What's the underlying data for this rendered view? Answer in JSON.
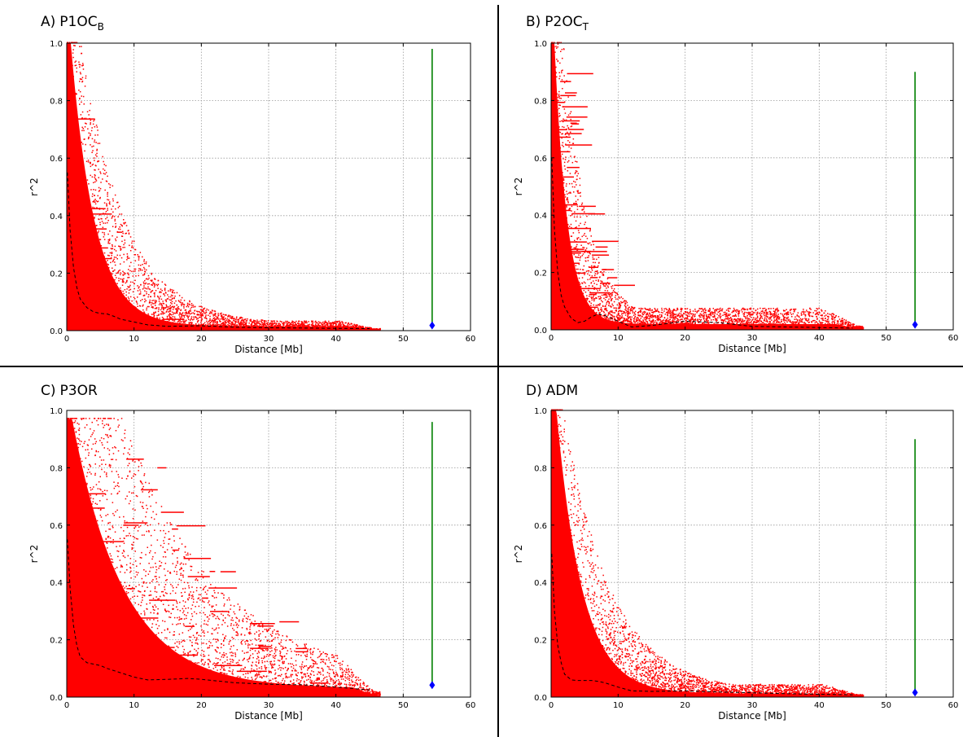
{
  "chart_data": [
    {
      "id": "A",
      "type": "scatter",
      "title": {
        "prefix": "A)",
        "main": "P1OC",
        "sub": "B"
      },
      "xlabel": "Distance [Mb]",
      "ylabel": "r^2",
      "xlim": [
        0,
        60
      ],
      "ylim": [
        0,
        1.0
      ],
      "xticks": [
        0,
        10,
        20,
        30,
        40,
        50,
        60
      ],
      "yticks": [
        "0.0",
        "0.2",
        "0.4",
        "0.6",
        "0.8",
        "1.0"
      ],
      "grid": true,
      "colors": {
        "points": "#ff0000",
        "decay": "#000000",
        "column": "#008000",
        "marker": "#0000ff"
      },
      "cloud": {
        "x_max": 46.5,
        "head_x": 0.6,
        "decay": 6.5,
        "floor": 0.015,
        "tail_top": 0.03,
        "spread": 1.2,
        "peak": 1.0,
        "stripes": 0.15
      },
      "decay_curve": {
        "x": [
          0.1,
          0.5,
          1,
          1.5,
          2,
          3,
          4,
          5,
          6,
          7,
          8,
          10,
          12,
          15,
          20,
          25,
          30,
          35,
          40,
          45
        ],
        "y": [
          0.55,
          0.35,
          0.22,
          0.15,
          0.11,
          0.08,
          0.065,
          0.06,
          0.058,
          0.05,
          0.04,
          0.03,
          0.02,
          0.015,
          0.017,
          0.012,
          0.01,
          0.009,
          0.008,
          0.007
        ]
      },
      "green_column": {
        "x": 54.3,
        "y_min": 0.02,
        "y_max": 0.98
      },
      "marker": {
        "x": 54.3,
        "y": 0.018
      }
    },
    {
      "id": "B",
      "type": "scatter",
      "title": {
        "prefix": "B)",
        "main": "P2OC",
        "sub": "T"
      },
      "xlabel": "Distance [Mb]",
      "ylabel": "r^2",
      "xlim": [
        0,
        60
      ],
      "ylim": [
        0,
        1.0
      ],
      "xticks": [
        0,
        10,
        20,
        30,
        40,
        50,
        60
      ],
      "yticks": [
        "0.0",
        "0.2",
        "0.4",
        "0.6",
        "0.8",
        "1.0"
      ],
      "grid": true,
      "colors": {
        "points": "#ff0000",
        "decay": "#000000",
        "column": "#008000",
        "marker": "#0000ff"
      },
      "cloud": {
        "x_max": 46.5,
        "head_x": 0.5,
        "decay": 3.5,
        "floor": 0.02,
        "tail_top": 0.07,
        "spread": 1.4,
        "peak": 1.0,
        "stripes": 0.6
      },
      "decay_curve": {
        "x": [
          0.1,
          0.5,
          1,
          1.5,
          2,
          3,
          4,
          5,
          6,
          7,
          8,
          10,
          12,
          15,
          20,
          25,
          30,
          35,
          40,
          45
        ],
        "y": [
          0.6,
          0.35,
          0.2,
          0.12,
          0.08,
          0.04,
          0.025,
          0.03,
          0.045,
          0.055,
          0.05,
          0.03,
          0.01,
          0.015,
          0.03,
          0.025,
          0.012,
          0.01,
          0.008,
          0.006
        ]
      },
      "green_column": {
        "x": 54.3,
        "y_min": 0.02,
        "y_max": 0.9
      },
      "marker": {
        "x": 54.3,
        "y": 0.018
      }
    },
    {
      "id": "C",
      "type": "scatter",
      "title": {
        "prefix": "C)",
        "main": "P3OR",
        "sub": ""
      },
      "xlabel": "Distance [Mb]",
      "ylabel": "r^2",
      "xlim": [
        0,
        60
      ],
      "ylim": [
        0,
        1.0
      ],
      "xticks": [
        0,
        10,
        20,
        30,
        40,
        50,
        60
      ],
      "yticks": [
        "0.0",
        "0.2",
        "0.4",
        "0.6",
        "0.8",
        "1.0"
      ],
      "grid": true,
      "colors": {
        "points": "#ff0000",
        "decay": "#000000",
        "column": "#008000",
        "marker": "#0000ff"
      },
      "cloud": {
        "x_max": 46.5,
        "head_x": 0.8,
        "decay": 14,
        "floor": 0.03,
        "tail_top": 0.07,
        "spread": 1.6,
        "peak": 0.97,
        "stripes": 0.55
      },
      "decay_curve": {
        "x": [
          0.1,
          0.5,
          1,
          1.5,
          2,
          3,
          4,
          5,
          6,
          8,
          10,
          12,
          15,
          18,
          20,
          25,
          30,
          35,
          40,
          45
        ],
        "y": [
          0.55,
          0.38,
          0.25,
          0.18,
          0.14,
          0.12,
          0.115,
          0.11,
          0.1,
          0.085,
          0.07,
          0.06,
          0.062,
          0.065,
          0.062,
          0.05,
          0.045,
          0.043,
          0.035,
          0.025
        ]
      },
      "green_column": {
        "x": 54.3,
        "y_min": 0.04,
        "y_max": 0.96
      },
      "marker": {
        "x": 54.3,
        "y": 0.042
      }
    },
    {
      "id": "D",
      "type": "scatter",
      "title": {
        "prefix": "D)",
        "main": "ADM",
        "sub": ""
      },
      "xlabel": "Distance [Mb]",
      "ylabel": "r^2",
      "xlim": [
        0,
        60
      ],
      "ylim": [
        0,
        1.0
      ],
      "xticks": [
        0,
        10,
        20,
        30,
        40,
        50,
        60
      ],
      "yticks": [
        "0.0",
        "0.2",
        "0.4",
        "0.6",
        "0.8",
        "1.0"
      ],
      "grid": true,
      "colors": {
        "points": "#ff0000",
        "decay": "#000000",
        "column": "#008000",
        "marker": "#0000ff"
      },
      "cloud": {
        "x_max": 46.5,
        "head_x": 0.8,
        "decay": 7,
        "floor": 0.012,
        "tail_top": 0.04,
        "spread": 1.1,
        "peak": 1.0,
        "stripes": 0.05
      },
      "decay_curve": {
        "x": [
          0.1,
          0.5,
          1,
          1.5,
          2,
          3,
          4,
          5,
          6,
          7,
          8,
          10,
          12,
          15,
          20,
          25,
          30,
          35,
          40,
          45
        ],
        "y": [
          0.5,
          0.3,
          0.18,
          0.12,
          0.08,
          0.06,
          0.058,
          0.058,
          0.058,
          0.055,
          0.05,
          0.035,
          0.022,
          0.02,
          0.022,
          0.018,
          0.015,
          0.012,
          0.01,
          0.008
        ]
      },
      "green_column": {
        "x": 54.3,
        "y_min": 0.02,
        "y_max": 0.9
      },
      "marker": {
        "x": 54.3,
        "y": 0.016
      }
    }
  ]
}
